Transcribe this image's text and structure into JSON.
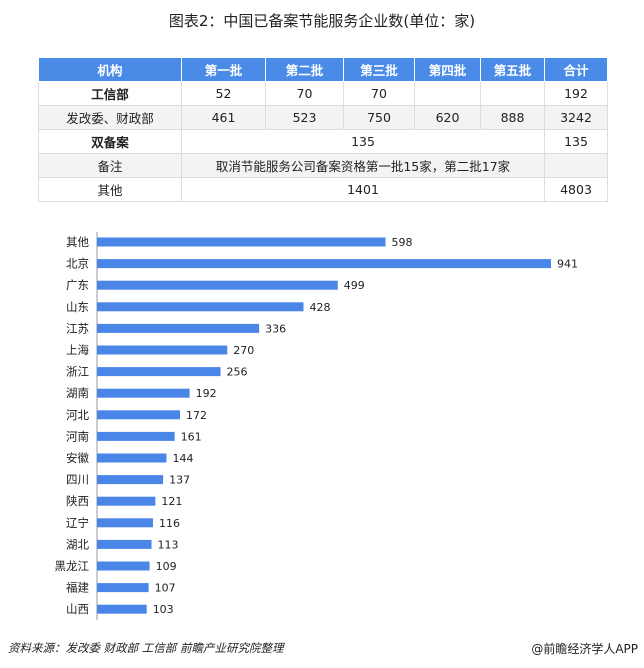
{
  "title": "图表2：中国已备案节能服务企业数(单位：家)",
  "table": {
    "headers": [
      "机构",
      "第一批",
      "第二批",
      "第三批",
      "第四批",
      "第五批",
      "合计"
    ],
    "rows": [
      [
        "工信部",
        "52",
        "70",
        "70",
        "",
        "",
        "192"
      ],
      [
        "发改委、财政部",
        "461",
        "523",
        "750",
        "620",
        "888",
        "3242"
      ]
    ],
    "double": {
      "label": "双备案",
      "value": "135",
      "total": "135"
    },
    "note": {
      "label": "备注",
      "value": "取消节能服务公司备案资格第一批15家，第二批17家"
    },
    "other": {
      "label": "其他",
      "value": "1401",
      "total": "4803"
    }
  },
  "chart_data": {
    "type": "bar",
    "orientation": "horizontal",
    "categories": [
      "其他",
      "北京",
      "广东",
      "山东",
      "江苏",
      "上海",
      "浙江",
      "湖南",
      "河北",
      "河南",
      "安徽",
      "四川",
      "陕西",
      "辽宁",
      "湖北",
      "黑龙江",
      "福建",
      "山西"
    ],
    "values": [
      598,
      941,
      499,
      428,
      336,
      270,
      256,
      192,
      172,
      161,
      144,
      137,
      121,
      116,
      113,
      109,
      107,
      103
    ],
    "color": "#4a86e8"
  },
  "footer": {
    "source": "资料来源：发改委 财政部 工信部 前瞻产业研究院整理",
    "brand": "@前瞻经济学人APP"
  }
}
